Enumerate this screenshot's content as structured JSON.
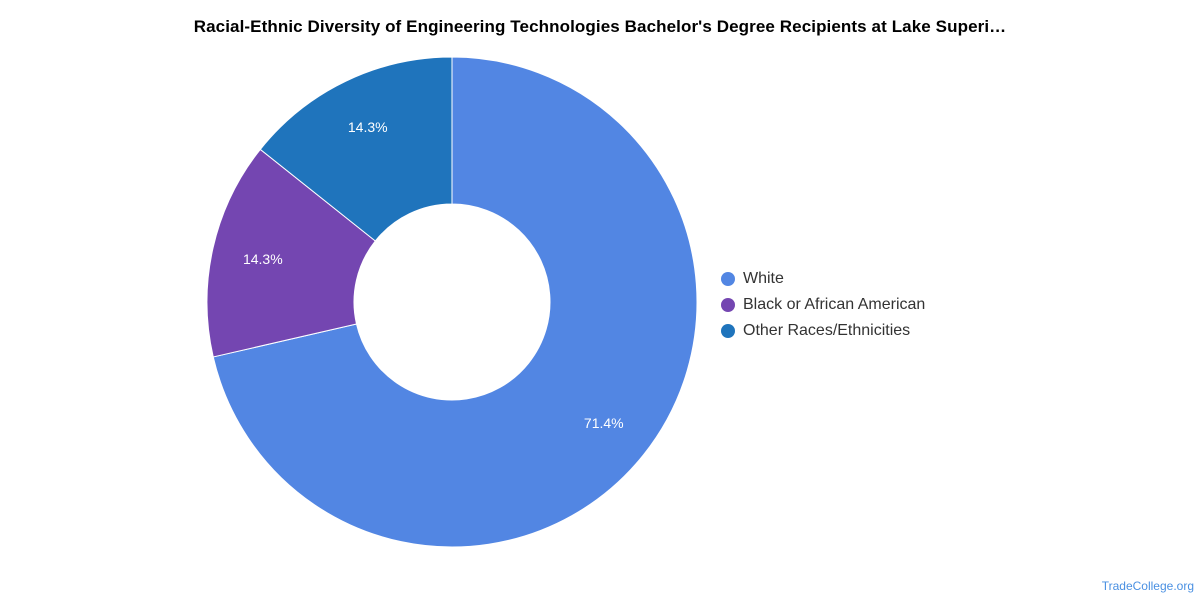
{
  "chart_data": {
    "type": "pie",
    "title": "Racial-Ethnic Diversity of Engineering Technologies Bachelor's Degree Recipients at Lake Superi…",
    "donut": true,
    "slices": [
      {
        "label": "White",
        "value": 71.4,
        "display": "71.4%",
        "color": "#5286e3"
      },
      {
        "label": "Black or African American",
        "value": 14.3,
        "display": "14.3%",
        "color": "#7446b1"
      },
      {
        "label": "Other Races/Ethnicities",
        "value": 14.3,
        "display": "14.3%",
        "color": "#1f74bc"
      }
    ],
    "start_angle": "12 o'clock",
    "direction": "clockwise",
    "legend_position": "right"
  },
  "watermark": "TradeCollege.org"
}
